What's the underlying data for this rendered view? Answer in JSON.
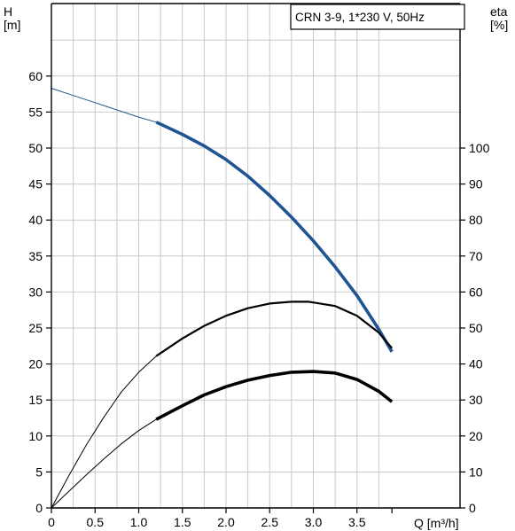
{
  "chart_data": {
    "type": "line",
    "title": "CRN 3-9, 1*230 V, 50Hz",
    "y_left_label": [
      "H",
      "[m]"
    ],
    "y_right_label": [
      "eta",
      "[%]"
    ],
    "x_label": "Q [m³/h]",
    "x_ticks": [
      "0",
      "0.5",
      "1.0",
      "1.5",
      "2.0",
      "2.5",
      "3.0",
      "3.5"
    ],
    "x_tick_values": [
      0,
      0.5,
      1.0,
      1.5,
      2.0,
      2.5,
      3.0,
      3.5
    ],
    "y_left_ticks": [
      "0",
      "5",
      "10",
      "15",
      "20",
      "25",
      "30",
      "35",
      "40",
      "45",
      "50",
      "55",
      "60"
    ],
    "y_left_tick_values": [
      0,
      5,
      10,
      15,
      20,
      25,
      30,
      35,
      40,
      45,
      50,
      55,
      60
    ],
    "y_right_ticks": [
      "0",
      "10",
      "20",
      "30",
      "40",
      "50",
      "60",
      "70",
      "80",
      "90",
      "100"
    ],
    "y_right_tick_values": [
      0,
      10,
      20,
      30,
      40,
      50,
      60,
      70,
      80,
      90,
      100
    ],
    "xlim": [
      0,
      4.1
    ],
    "ylim_left": [
      0,
      65
    ],
    "ylim_right": [
      0,
      130
    ],
    "grid": true,
    "series": [
      {
        "axis": "left",
        "color": "#1f5592",
        "thin_x": [
          0,
          0.25,
          0.5,
          0.75,
          1.0,
          1.2
        ],
        "thin_y": [
          58.3,
          57.3,
          56.3,
          55.3,
          54.3,
          53.6
        ],
        "thick_x": [
          1.2,
          1.5,
          1.75,
          2.0,
          2.25,
          2.5,
          2.75,
          3.0,
          3.25,
          3.5,
          3.75,
          3.9
        ],
        "thick_y": [
          53.6,
          51.9,
          50.3,
          48.4,
          46.1,
          43.4,
          40.4,
          37.1,
          33.5,
          29.5,
          24.8,
          21.7
        ]
      },
      {
        "axis": "right",
        "color": "#000000",
        "thin_x": [
          0,
          0.2,
          0.4,
          0.6,
          0.8,
          1.0,
          1.2
        ],
        "thin_y": [
          0,
          9,
          17.5,
          25.2,
          32.2,
          37.7,
          42.2
        ],
        "thick_x": [
          1.2,
          1.5,
          1.75,
          2.0,
          2.25,
          2.5,
          2.75,
          2.95,
          3.25,
          3.5,
          3.75,
          3.9
        ],
        "thick_y": [
          42.2,
          47.1,
          50.6,
          53.4,
          55.5,
          56.8,
          57.3,
          57.3,
          56.1,
          53.4,
          48.7,
          44.4
        ]
      },
      {
        "axis": "right",
        "color": "#000000",
        "thin_x": [
          0,
          0.2,
          0.4,
          0.6,
          0.8,
          1.0,
          1.2
        ],
        "thin_y": [
          0,
          4.6,
          9.2,
          13.6,
          17.8,
          21.5,
          24.6
        ],
        "thick_x": [
          1.2,
          1.5,
          1.75,
          2.0,
          2.25,
          2.5,
          2.75,
          3.0,
          3.25,
          3.5,
          3.75,
          3.9
        ],
        "thick_y": [
          24.6,
          28.4,
          31.4,
          33.7,
          35.5,
          36.8,
          37.7,
          37.9,
          37.5,
          35.7,
          32.4,
          29.5
        ]
      }
    ]
  }
}
